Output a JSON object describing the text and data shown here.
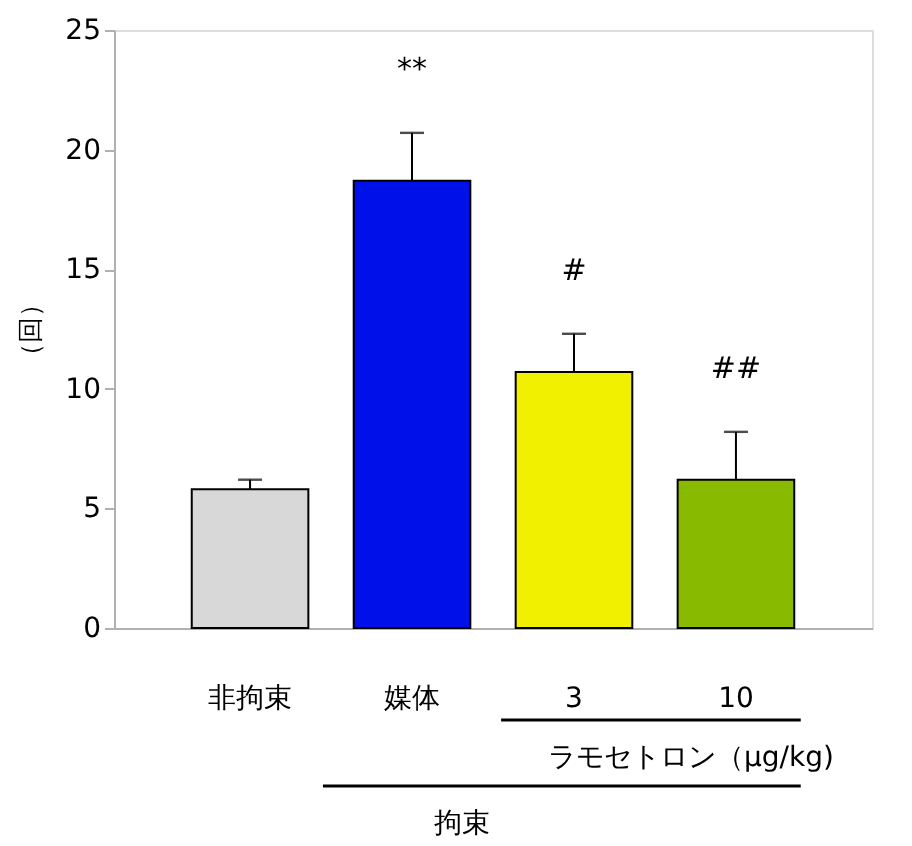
{
  "chart_data": {
    "type": "bar",
    "ylabel": "（回）",
    "categories": [
      "非拘束",
      "媒体",
      "3",
      "10"
    ],
    "values": [
      5.8,
      18.7,
      10.7,
      6.2
    ],
    "errors": [
      0.4,
      2.0,
      1.6,
      2.0
    ],
    "colors": [
      "#d8d8d8",
      "#0010e8",
      "#f0f000",
      "#88bb00"
    ],
    "ylim": [
      0,
      25
    ],
    "yticks": [
      0,
      5,
      10,
      15,
      20,
      25
    ],
    "grid": false,
    "annotations": [
      "**",
      "#",
      "##",
      "ラモセトロン（μg/kg)",
      "拘束"
    ]
  }
}
